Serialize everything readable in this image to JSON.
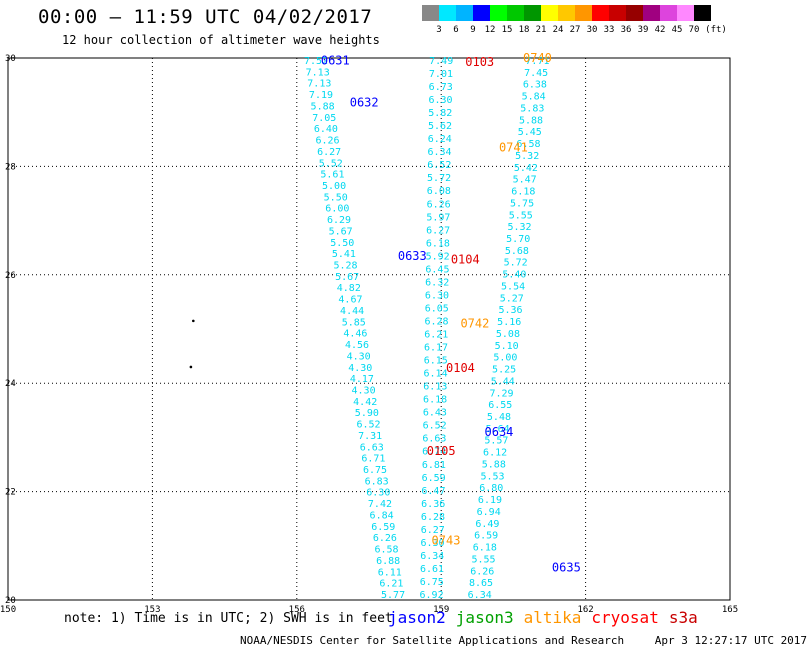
{
  "header": {
    "title": "00:00 — 11:59 UTC 04/02/2017",
    "subtitle": "12 hour collection of altimeter wave heights"
  },
  "colorbar": {
    "unit": "(ft)",
    "swatches": [
      {
        "label": "3",
        "color": "#888888"
      },
      {
        "label": "6",
        "color": "#00e8ff"
      },
      {
        "label": "9",
        "color": "#00b4ff"
      },
      {
        "label": "12",
        "color": "#0000ff"
      },
      {
        "label": "15",
        "color": "#00ff00"
      },
      {
        "label": "18",
        "color": "#00c800"
      },
      {
        "label": "21",
        "color": "#009600"
      },
      {
        "label": "24",
        "color": "#ffff00"
      },
      {
        "label": "27",
        "color": "#ffc800"
      },
      {
        "label": "30",
        "color": "#ff9600"
      },
      {
        "label": "33",
        "color": "#ff0000"
      },
      {
        "label": "36",
        "color": "#c80000"
      },
      {
        "label": "39",
        "color": "#960000"
      },
      {
        "label": "42",
        "color": "#a00080"
      },
      {
        "label": "45",
        "color": "#dd44dd"
      },
      {
        "label": "70",
        "color": "#ff88ff"
      },
      {
        "label": "",
        "color": "#000000"
      }
    ]
  },
  "axes": {
    "x_ticks": [
      "150",
      "153",
      "156",
      "159",
      "162",
      "165"
    ],
    "y_ticks": [
      "30",
      "28",
      "26",
      "24",
      "22",
      "20"
    ],
    "lon_range": [
      150,
      165
    ],
    "lat_range": [
      20,
      30
    ]
  },
  "tracks": [
    {
      "satellite": "jason2",
      "start_lon": 156.4,
      "end_lon": 158.0,
      "values": [
        "7.52",
        "7.13",
        "7.13",
        "7.19",
        "5.88",
        "7.05",
        "6.40",
        "6.26",
        "6.27",
        "5.52",
        "5.61",
        "5.00",
        "5.50",
        "6.00",
        "6.29",
        "5.67",
        "5.50",
        "5.41",
        "5.28",
        "5.67",
        "4.82",
        "4.67",
        "4.44",
        "5.85",
        "4.46",
        "4.56",
        "4.30",
        "4.30",
        "4.17",
        "4.30",
        "4.42",
        "5.90",
        "6.52",
        "7.31",
        "6.63",
        "6.71",
        "6.75",
        "6.83",
        "6.30",
        "7.42",
        "6.84",
        "6.59",
        "6.26",
        "6.58",
        "6.88",
        "6.11",
        "6.21",
        "5.77"
      ]
    },
    {
      "satellite": "jason2",
      "start_lon": 161.0,
      "end_lon": 159.8,
      "values": [
        "7.71",
        "7.45",
        "6.38",
        "5.84",
        "5.83",
        "5.88",
        "5.45",
        "6.58",
        "5.32",
        "5.42",
        "5.47",
        "6.18",
        "5.75",
        "5.55",
        "5.32",
        "5.70",
        "5.68",
        "5.72",
        "5.40",
        "5.54",
        "5.27",
        "5.36",
        "5.16",
        "5.08",
        "5.10",
        "5.00",
        "5.25",
        "5.44",
        "7.29",
        "6.55",
        "5.48",
        "5.64",
        "5.57",
        "6.12",
        "5.88",
        "5.53",
        "6.80",
        "6.19",
        "6.94",
        "6.49",
        "6.59",
        "6.18",
        "5.55",
        "6.26",
        "8.65",
        "6.34"
      ]
    },
    {
      "satellite": "jason2",
      "start_lon": 159.0,
      "end_lon": 158.8,
      "values": [
        "7.49",
        "7.01",
        "6.73",
        "6.30",
        "5.82",
        "5.62",
        "6.24",
        "6.34",
        "6.52",
        "5.72",
        "6.08",
        "6.26",
        "5.97",
        "6.27",
        "6.18",
        "5.92",
        "6.45",
        "6.32",
        "6.30",
        "6.05",
        "6.28",
        "6.21",
        "6.17",
        "6.15",
        "6.14",
        "6.13",
        "6.18",
        "6.43",
        "6.52",
        "6.63",
        "6.74",
        "6.81",
        "6.59",
        "6.47",
        "6.36",
        "6.28",
        "6.27",
        "6.30",
        "6.34",
        "6.61",
        "6.75",
        "6.92"
      ]
    }
  ],
  "pass_labels": [
    {
      "text": "0631",
      "satellite": "jason2"
    },
    {
      "text": "0632",
      "satellite": "jason2"
    },
    {
      "text": "0633",
      "satellite": "jason2"
    },
    {
      "text": "0634",
      "satellite": "jason2"
    },
    {
      "text": "0635",
      "satellite": "jason2"
    },
    {
      "text": "0740",
      "satellite": "altika"
    },
    {
      "text": "0741",
      "satellite": "altika"
    },
    {
      "text": "0742",
      "satellite": "altika"
    },
    {
      "text": "0743",
      "satellite": "altika"
    },
    {
      "text": "0103",
      "satellite": "cryosat"
    },
    {
      "text": "0104",
      "satellite": "cryosat"
    },
    {
      "text": "0104",
      "satellite": "cryosat"
    },
    {
      "text": "0105",
      "satellite": "cryosat"
    }
  ],
  "islands": [
    {
      "lon": 153.85,
      "lat": 25.15
    },
    {
      "lon": 153.8,
      "lat": 24.3
    }
  ],
  "note": "note: 1) Time is in UTC; 2) SWH is in feet",
  "legend": [
    {
      "name": "jason2",
      "color": "#0000ff"
    },
    {
      "name": "jason3",
      "color": "#00a000"
    },
    {
      "name": "altika",
      "color": "#ff9600"
    },
    {
      "name": "cryosat",
      "color": "#ff0000"
    },
    {
      "name": "s3a",
      "color": "#c80000"
    }
  ],
  "footer": {
    "credit": "NOAA/NESDIS Center for Satellite Applications and Research",
    "timestamp": "Apr  3 12:27:17 UTC 2017"
  },
  "colors": {
    "value_text": "#00d8f0",
    "jason2": "#0000ff",
    "altika": "#ff9600",
    "cryosat": "#e00000"
  }
}
